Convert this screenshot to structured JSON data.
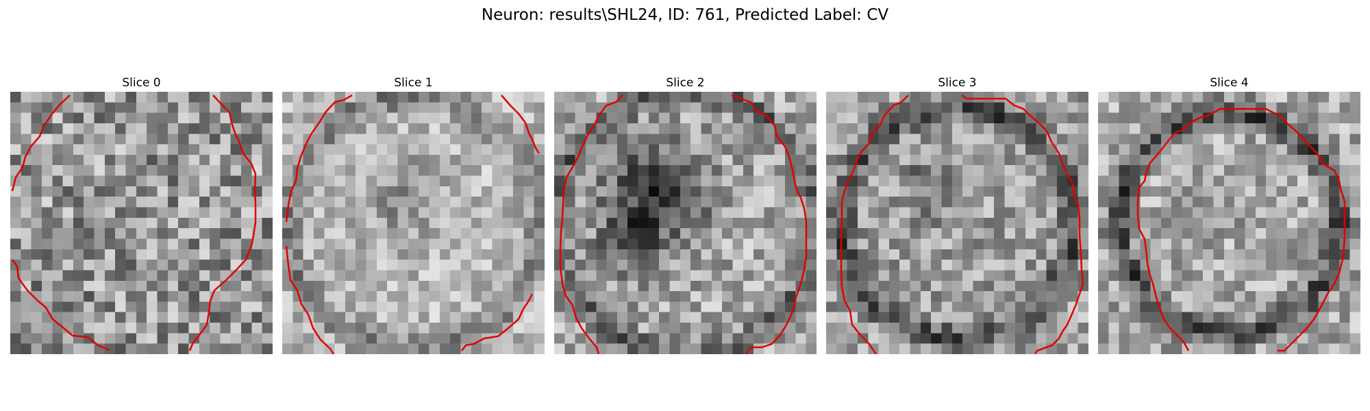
{
  "figure": {
    "title": "Neuron: results\\SHL24, ID: 761, Predicted Label: CV"
  },
  "slices": [
    {
      "label": "Slice 0"
    },
    {
      "label": "Slice 1"
    },
    {
      "label": "Slice 2"
    },
    {
      "label": "Slice 3"
    },
    {
      "label": "Slice 4"
    }
  ],
  "colors": {
    "contour": "#e00000"
  }
}
